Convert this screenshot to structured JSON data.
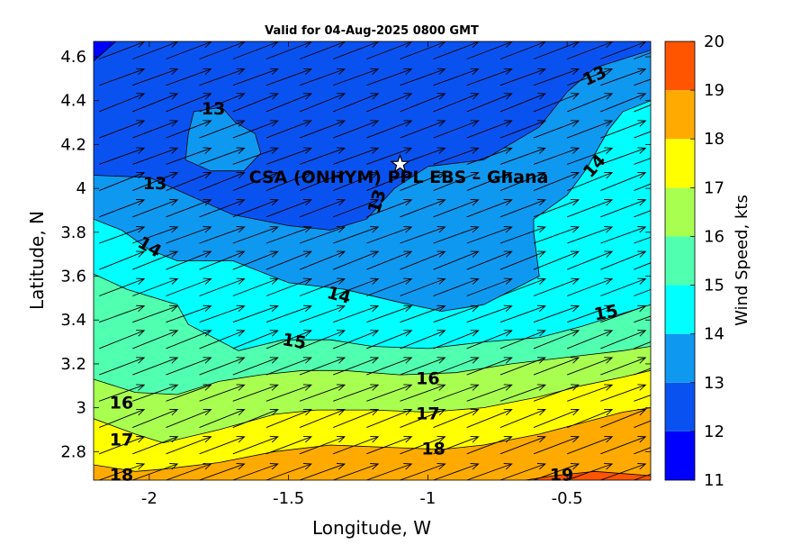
{
  "chart_data": {
    "type": "contour",
    "title": "Valid for 04-Aug-2025 0800 GMT",
    "xlabel": "Longitude, W",
    "ylabel": "Latitude, N",
    "xlim": [
      -2.2,
      -0.2
    ],
    "ylim": [
      2.67,
      4.67
    ],
    "x_ticks": [
      -2,
      -1.5,
      -1,
      -0.5
    ],
    "x_tick_labels": [
      "-2",
      "-1.5",
      "-1",
      "-0.5"
    ],
    "y_ticks": [
      2.8,
      3,
      3.2,
      3.4,
      3.6,
      3.8,
      4,
      4.2,
      4.4,
      4.6
    ],
    "y_tick_labels": [
      "2.8",
      "3",
      "3.2",
      "3.4",
      "3.6",
      "3.8",
      "4",
      "4.2",
      "4.4",
      "4.6"
    ],
    "colorbar": {
      "label": "Wind Speed, kts",
      "min": 11,
      "max": 20,
      "ticks": [
        11,
        12,
        13,
        14,
        15,
        16,
        17,
        18,
        19,
        20
      ],
      "tick_labels": [
        "11",
        "12",
        "13",
        "14",
        "15",
        "16",
        "17",
        "18",
        "19",
        "20"
      ],
      "band_colors": [
        "#0000ff",
        "#0a52f0",
        "#0f98f0",
        "#00ffff",
        "#50ffaf",
        "#a8ff50",
        "#ffff00",
        "#ffaa00",
        "#ff5500"
      ]
    },
    "contour_levels": [
      12,
      13,
      14,
      15,
      16,
      17,
      18,
      19
    ],
    "contours": [
      {
        "level": 12,
        "points": [
          [
            -2.2,
            4.58
          ],
          [
            -2.12,
            4.67
          ]
        ]
      },
      {
        "level": 13,
        "points": [
          [
            -2.2,
            4.06
          ],
          [
            -2.0,
            4.05
          ],
          [
            -1.86,
            3.97
          ],
          [
            -1.7,
            3.88
          ],
          [
            -1.5,
            3.83
          ],
          [
            -1.35,
            3.81
          ],
          [
            -1.22,
            3.86
          ],
          [
            -1.12,
            4.0
          ],
          [
            -1.0,
            4.1
          ],
          [
            -0.8,
            4.13
          ],
          [
            -0.6,
            4.28
          ],
          [
            -0.5,
            4.44
          ],
          [
            -0.4,
            4.55
          ],
          [
            -0.2,
            4.63
          ]
        ]
      },
      {
        "level": 13,
        "closed": true,
        "points": [
          [
            -1.84,
            4.35
          ],
          [
            -1.74,
            4.37
          ],
          [
            -1.69,
            4.3
          ],
          [
            -1.62,
            4.25
          ],
          [
            -1.6,
            4.16
          ],
          [
            -1.66,
            4.08
          ],
          [
            -1.78,
            4.08
          ],
          [
            -1.87,
            4.13
          ],
          [
            -1.86,
            4.25
          ]
        ]
      },
      {
        "level": 14,
        "points": [
          [
            -2.2,
            3.86
          ],
          [
            -2.1,
            3.81
          ],
          [
            -2.0,
            3.72
          ],
          [
            -1.9,
            3.67
          ],
          [
            -1.7,
            3.67
          ],
          [
            -1.5,
            3.57
          ],
          [
            -1.3,
            3.54
          ],
          [
            -1.1,
            3.48
          ],
          [
            -0.95,
            3.44
          ],
          [
            -0.8,
            3.47
          ],
          [
            -0.6,
            3.6
          ],
          [
            -0.62,
            3.8
          ],
          [
            -0.62,
            3.86
          ],
          [
            -0.5,
            3.97
          ],
          [
            -0.43,
            4.09
          ],
          [
            -0.35,
            4.27
          ],
          [
            -0.3,
            4.35
          ],
          [
            -0.2,
            4.4
          ]
        ]
      },
      {
        "level": 15,
        "points": [
          [
            -2.2,
            3.61
          ],
          [
            -2.08,
            3.54
          ],
          [
            -1.9,
            3.47
          ],
          [
            -1.86,
            3.38
          ],
          [
            -1.68,
            3.26
          ],
          [
            -1.52,
            3.31
          ],
          [
            -1.35,
            3.31
          ],
          [
            -1.2,
            3.28
          ],
          [
            -1.0,
            3.27
          ],
          [
            -0.8,
            3.3
          ],
          [
            -0.6,
            3.32
          ],
          [
            -0.45,
            3.37
          ],
          [
            -0.3,
            3.43
          ],
          [
            -0.2,
            3.47
          ]
        ]
      },
      {
        "level": 16,
        "points": [
          [
            -2.2,
            3.13
          ],
          [
            -2.05,
            3.07
          ],
          [
            -1.9,
            3.06
          ],
          [
            -1.75,
            3.12
          ],
          [
            -1.6,
            3.15
          ],
          [
            -1.45,
            3.17
          ],
          [
            -1.3,
            3.17
          ],
          [
            -1.1,
            3.15
          ],
          [
            -0.9,
            3.16
          ],
          [
            -0.7,
            3.2
          ],
          [
            -0.5,
            3.23
          ],
          [
            -0.3,
            3.26
          ],
          [
            -0.2,
            3.28
          ]
        ]
      },
      {
        "level": 17,
        "points": [
          [
            -2.2,
            2.95
          ],
          [
            -2.05,
            2.88
          ],
          [
            -1.95,
            2.84
          ],
          [
            -1.75,
            2.9
          ],
          [
            -1.55,
            2.97
          ],
          [
            -1.4,
            2.99
          ],
          [
            -1.2,
            2.99
          ],
          [
            -1.0,
            2.98
          ],
          [
            -0.8,
            3.0
          ],
          [
            -0.6,
            3.05
          ],
          [
            -0.45,
            3.1
          ],
          [
            -0.3,
            3.14
          ],
          [
            -0.2,
            3.17
          ]
        ]
      },
      {
        "level": 18,
        "points": [
          [
            -2.2,
            2.74
          ],
          [
            -2.05,
            2.71
          ],
          [
            -1.95,
            2.72
          ],
          [
            -1.75,
            2.75
          ],
          [
            -1.55,
            2.8
          ],
          [
            -1.35,
            2.83
          ],
          [
            -1.15,
            2.82
          ],
          [
            -0.95,
            2.81
          ],
          [
            -0.8,
            2.83
          ],
          [
            -0.6,
            2.88
          ],
          [
            -0.45,
            2.93
          ],
          [
            -0.3,
            2.98
          ],
          [
            -0.2,
            3.0
          ]
        ]
      },
      {
        "level": 19,
        "points": [
          [
            -0.65,
            2.67
          ],
          [
            -0.55,
            2.69
          ],
          [
            -0.4,
            2.71
          ],
          [
            -0.3,
            2.7
          ],
          [
            -0.2,
            2.69
          ]
        ]
      }
    ],
    "contour_labels": [
      {
        "text": "13",
        "x": -1.77,
        "y": 4.36,
        "angle": 0
      },
      {
        "text": "13",
        "x": -1.98,
        "y": 4.02,
        "angle": 0
      },
      {
        "text": "13",
        "x": -1.18,
        "y": 3.94,
        "angle": -72
      },
      {
        "text": "13",
        "x": -0.4,
        "y": 4.51,
        "angle": -25
      },
      {
        "text": "14",
        "x": -2.0,
        "y": 3.73,
        "angle": 30
      },
      {
        "text": "14",
        "x": -1.32,
        "y": 3.51,
        "angle": 15
      },
      {
        "text": "14",
        "x": -0.4,
        "y": 4.1,
        "angle": -48
      },
      {
        "text": "15",
        "x": -1.48,
        "y": 3.3,
        "angle": 10
      },
      {
        "text": "15",
        "x": -0.36,
        "y": 3.43,
        "angle": -10
      },
      {
        "text": "16",
        "x": -2.1,
        "y": 3.02,
        "angle": 0
      },
      {
        "text": "16",
        "x": -1.0,
        "y": 3.13,
        "angle": 0
      },
      {
        "text": "17",
        "x": -2.1,
        "y": 2.85,
        "angle": 0
      },
      {
        "text": "17",
        "x": -1.0,
        "y": 2.97,
        "angle": 0
      },
      {
        "text": "18",
        "x": -2.1,
        "y": 2.69,
        "angle": 0
      },
      {
        "text": "18",
        "x": -0.98,
        "y": 2.81,
        "angle": 0
      },
      {
        "text": "19",
        "x": -0.52,
        "y": 2.69,
        "angle": 0
      }
    ],
    "site": {
      "label": "CSA (ONHYM) PPL EBS  – Ghana",
      "x": -1.1,
      "y": 4.11
    },
    "wind_vectors": {
      "x": [
        -2.18,
        -2.06,
        -1.94,
        -1.82,
        -1.7,
        -1.58,
        -1.46,
        -1.34,
        -1.22,
        -1.1,
        -0.98,
        -0.86,
        -0.74,
        -0.62,
        -0.5,
        -0.38,
        -0.26
      ],
      "y": [
        2.67,
        2.79,
        2.91,
        3.03,
        3.15,
        3.27,
        3.39,
        3.51,
        3.63,
        3.75,
        3.87,
        3.99,
        4.11,
        4.23,
        4.35,
        4.47,
        4.59
      ],
      "direction_note": "south-westerly flow, arrows pointing to north-east"
    }
  }
}
